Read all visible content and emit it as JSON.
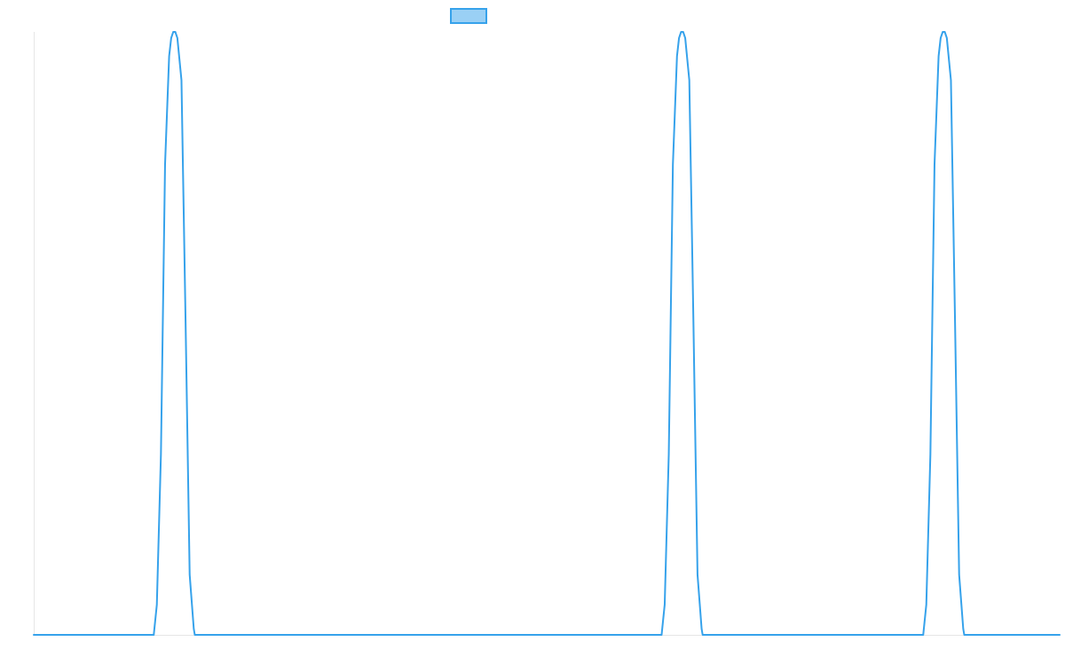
{
  "chart_data": {
    "type": "line",
    "title": "",
    "xlabel": "",
    "ylabel": "",
    "legend": {
      "position": "top-center",
      "entries": [
        {
          "name": "",
          "color": "#36a2eb",
          "fill": "#9ad0f5"
        }
      ]
    },
    "grid": false,
    "xlim": [
      0,
      1000
    ],
    "ylim": [
      0,
      1
    ],
    "series": [
      {
        "name": "",
        "color": "#36a2eb",
        "x": [
          0,
          117,
          120,
          124,
          128,
          132,
          134,
          136,
          137,
          138,
          140,
          144,
          148,
          152,
          156,
          157,
          612,
          615,
          619,
          623,
          627,
          629,
          631,
          632,
          633,
          635,
          639,
          643,
          647,
          651,
          652,
          867,
          870,
          874,
          878,
          882,
          884,
          886,
          887,
          888,
          890,
          894,
          898,
          902,
          906,
          907,
          1000
        ],
        "values": [
          0,
          0,
          0.05,
          0.3,
          0.78,
          0.96,
          0.99,
          1.0,
          1.0,
          1.0,
          0.99,
          0.92,
          0.52,
          0.1,
          0.01,
          0,
          0,
          0.05,
          0.3,
          0.78,
          0.96,
          0.99,
          1.0,
          1.0,
          1.0,
          0.99,
          0.92,
          0.52,
          0.1,
          0.01,
          0,
          0,
          0.05,
          0.3,
          0.78,
          0.96,
          0.99,
          1.0,
          1.0,
          1.0,
          0.99,
          0.92,
          0.52,
          0.1,
          0.01,
          0,
          0
        ]
      }
    ]
  }
}
